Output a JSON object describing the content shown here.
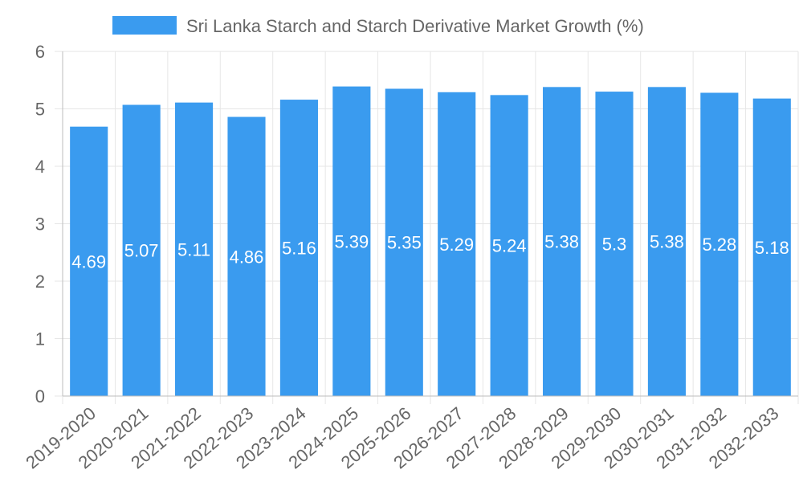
{
  "chart_data": {
    "type": "bar",
    "title": "",
    "legend": {
      "label": "Sri Lanka Starch and Starch Derivative Market Growth (%)",
      "position": "top-center"
    },
    "categories": [
      "2019-2020",
      "2020-2021",
      "2021-2022",
      "2022-2023",
      "2023-2024",
      "2024-2025",
      "2025-2026",
      "2026-2027",
      "2027-2028",
      "2028-2029",
      "2029-2030",
      "2030-2031",
      "2031-2032",
      "2032-2033"
    ],
    "values": [
      4.69,
      5.07,
      5.11,
      4.86,
      5.16,
      5.39,
      5.35,
      5.29,
      5.24,
      5.38,
      5.3,
      5.38,
      5.28,
      5.18
    ],
    "data_labels": [
      "4.69",
      "5.07",
      "5.11",
      "4.86",
      "5.16",
      "5.39",
      "5.35",
      "5.29",
      "5.24",
      "5.38",
      "5.3",
      "5.38",
      "5.28",
      "5.18"
    ],
    "y_ticks": [
      "0",
      "1",
      "2",
      "3",
      "4",
      "5",
      "6"
    ],
    "ylim": [
      0,
      6
    ],
    "xlabel": "",
    "ylabel": "",
    "grid": true,
    "color": "#3a9bef"
  }
}
